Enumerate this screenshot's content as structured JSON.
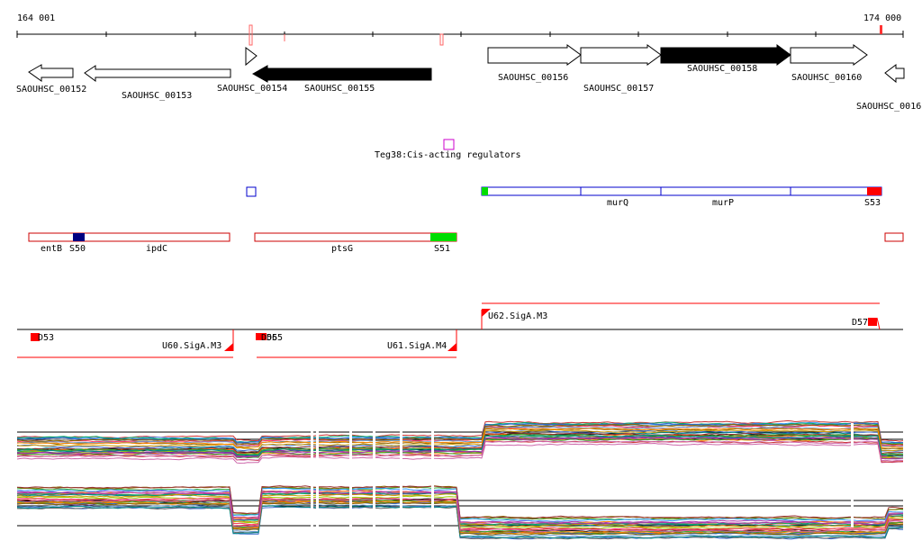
{
  "axis": {
    "start_label": "164 001",
    "end_label": "174 000"
  },
  "genes": [
    {
      "label": "SAOUHSC_00152",
      "strand": "-",
      "filled": false
    },
    {
      "label": "SAOUHSC_00153",
      "strand": "-",
      "filled": false
    },
    {
      "label": "SAOUHSC_00154",
      "strand": "+",
      "filled": false
    },
    {
      "label": "SAOUHSC_00155",
      "strand": "-",
      "filled": true
    },
    {
      "label": "SAOUHSC_00156",
      "strand": "+",
      "filled": false
    },
    {
      "label": "SAOUHSC_00157",
      "strand": "+",
      "filled": false
    },
    {
      "label": "SAOUHSC_00158",
      "strand": "+",
      "filled": true
    },
    {
      "label": "SAOUHSC_00160",
      "strand": "+",
      "filled": false
    },
    {
      "label": "SAOUHSC_0016",
      "strand": "-",
      "filled": false
    }
  ],
  "regulator": {
    "label": "Teg38:Cis-acting regulators",
    "color": "#cc00cc"
  },
  "operons": {
    "blue_color": "#0000cc",
    "red_color": "#cc0000",
    "labels": {
      "murQ": "murQ",
      "murP": "murP",
      "S53": "S53",
      "entB": "entB",
      "S50": "S50",
      "ipdC": "ipdC",
      "ptsG": "ptsG",
      "S51": "S51"
    }
  },
  "promoters": {
    "U62": "U62.SigA.M3",
    "D57": "D57",
    "D53": "D53",
    "U60": "U60.SigA.M3",
    "U61": "U61.SigA.M4",
    "D56": "D56",
    "D55": "D55"
  },
  "colors": {
    "accent_red": "#ff0000",
    "green_mark": "#00dd00",
    "navy_mark": "#000080",
    "gene_fill": "#000000"
  }
}
